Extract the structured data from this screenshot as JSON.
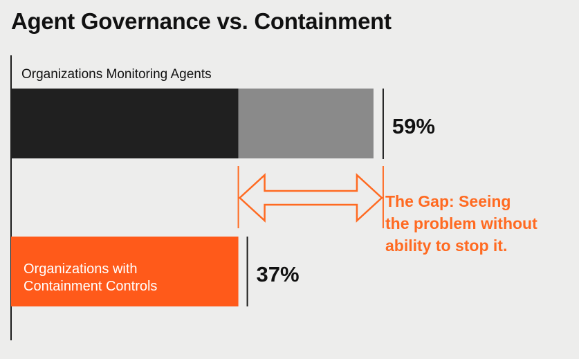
{
  "chart_data": {
    "type": "bar",
    "title": "Agent Governance vs. Containment",
    "xlim": [
      0,
      100
    ],
    "categories": [
      "Organizations Monitoring Agents",
      "Organizations with Containment Controls"
    ],
    "values": [
      59,
      37
    ],
    "value_labels": [
      "59%",
      "37%"
    ],
    "category_label_lines": [
      [
        "Organizations Monitoring Agents"
      ],
      [
        "Organizations with",
        "Containment Controls"
      ]
    ],
    "annotation": {
      "lines": [
        "The Gap: Seeing",
        "the problem without",
        "ability to stop it."
      ],
      "from_value": 37,
      "to_value": 59
    },
    "colors": {
      "monitoring": "#202020",
      "gap": "#8a8a8a",
      "containment": "#ff5a1a",
      "accent": "#ff6a21",
      "text": "#111111",
      "background": "#ededec"
    }
  }
}
